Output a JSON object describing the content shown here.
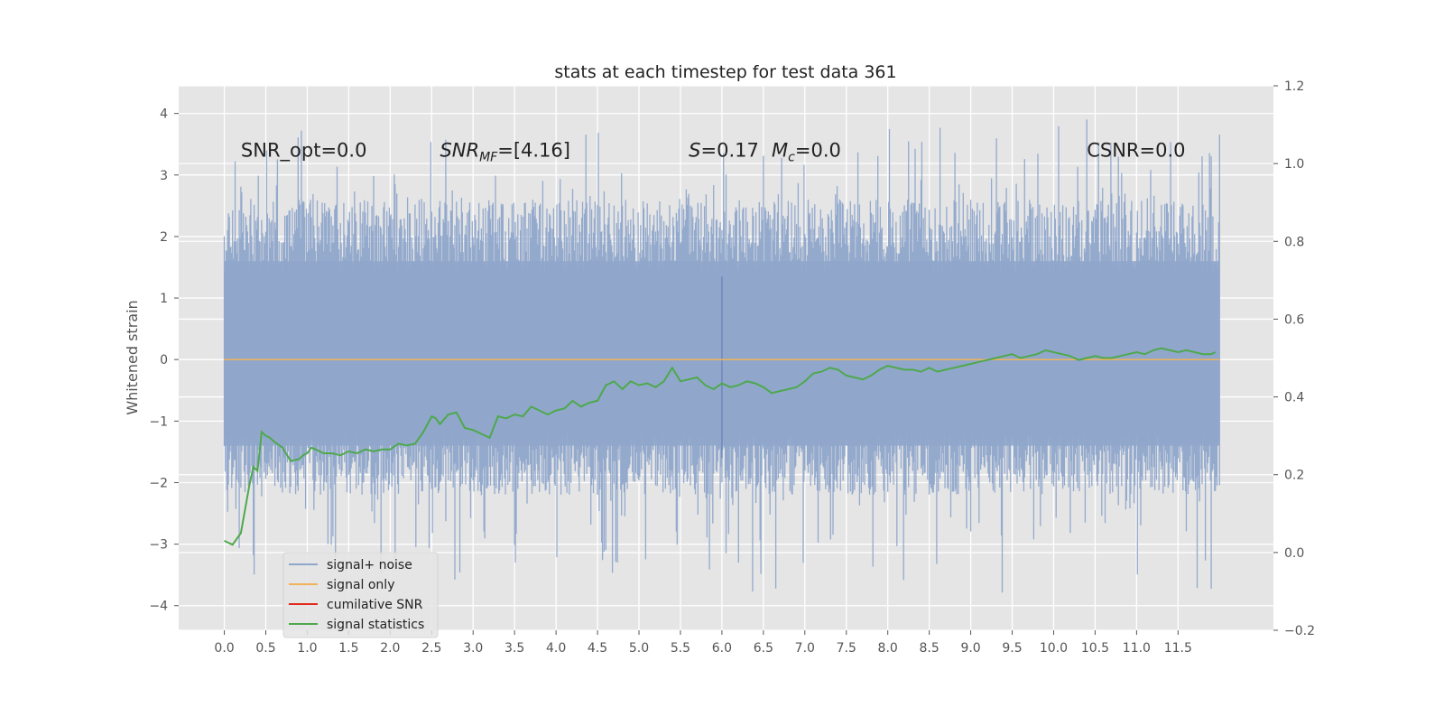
{
  "chart_data": {
    "type": "line",
    "title": "stats at each timestep for test data 361",
    "ylabel": "Whitened strain",
    "xlabel": "",
    "xlim": [
      -0.55,
      12.65
    ],
    "ylim": [
      -4.4,
      4.45
    ],
    "y2lim": [
      -0.2,
      1.2
    ],
    "x_ticks": [
      0.0,
      0.5,
      1.0,
      1.5,
      2.0,
      2.5,
      3.0,
      3.5,
      4.0,
      4.5,
      5.0,
      5.5,
      6.0,
      6.5,
      7.0,
      7.5,
      8.0,
      8.5,
      9.0,
      9.5,
      10.0,
      10.5,
      11.0,
      11.5
    ],
    "x_tick_labels": [
      "0.0",
      "0.5",
      "1.0",
      "1.5",
      "2.0",
      "2.5",
      "3.0",
      "3.5",
      "4.0",
      "4.5",
      "5.0",
      "5.5",
      "6.0",
      "6.5",
      "7.0",
      "7.5",
      "8.0",
      "8.5",
      "9.0",
      "9.5",
      "10.0",
      "10.5",
      "11.0",
      "11.5"
    ],
    "y_ticks": [
      -4,
      -3,
      -2,
      -1,
      0,
      1,
      2,
      3,
      4
    ],
    "y_tick_labels": [
      "−4",
      "−3",
      "−2",
      "−1",
      "0",
      "1",
      "2",
      "3",
      "4"
    ],
    "y2_ticks": [
      -0.2,
      0.0,
      0.2,
      0.4,
      0.6,
      0.8,
      1.0,
      1.2
    ],
    "y2_tick_labels": [
      "−0.2",
      "0.0",
      "0.2",
      "0.4",
      "0.6",
      "0.8",
      "1.0",
      "1.2"
    ],
    "grid": true,
    "legend_position": "lower-left",
    "noise_x_range": [
      0.0,
      12.0
    ],
    "series": [
      {
        "name": "signal+ noise",
        "color": "#8fa6cb",
        "axis": "left",
        "style": "noise band, approx. −1.8 to +2.2 with spikes to ±4"
      },
      {
        "name": "signal only",
        "color": "#f0b35a",
        "axis": "left",
        "x": [
          0.0,
          12.0
        ],
        "y": [
          0.0,
          0.0
        ]
      },
      {
        "name": "cumilative SNR",
        "color": "#e2261c",
        "axis": "right",
        "x": [],
        "y": []
      },
      {
        "name": "signal statistics",
        "color": "#4ea84d",
        "axis": "right",
        "x": [
          0.0,
          0.1,
          0.2,
          0.3,
          0.35,
          0.4,
          0.45,
          0.5,
          0.55,
          0.6,
          0.7,
          0.8,
          0.9,
          0.95,
          1.0,
          1.05,
          1.1,
          1.2,
          1.3,
          1.4,
          1.5,
          1.6,
          1.7,
          1.8,
          1.9,
          2.0,
          2.1,
          2.2,
          2.3,
          2.4,
          2.5,
          2.55,
          2.6,
          2.7,
          2.8,
          2.9,
          3.0,
          3.1,
          3.2,
          3.3,
          3.4,
          3.5,
          3.6,
          3.7,
          3.8,
          3.9,
          4.0,
          4.1,
          4.2,
          4.3,
          4.4,
          4.5,
          4.6,
          4.7,
          4.8,
          4.9,
          5.0,
          5.1,
          5.2,
          5.3,
          5.4,
          5.5,
          5.6,
          5.7,
          5.8,
          5.9,
          6.0,
          6.1,
          6.2,
          6.3,
          6.4,
          6.5,
          6.6,
          6.7,
          6.8,
          6.9,
          7.0,
          7.1,
          7.2,
          7.3,
          7.4,
          7.5,
          7.6,
          7.7,
          7.8,
          7.9,
          8.0,
          8.1,
          8.2,
          8.3,
          8.4,
          8.5,
          8.6,
          8.7,
          8.8,
          8.9,
          9.0,
          9.1,
          9.2,
          9.3,
          9.4,
          9.5,
          9.6,
          9.7,
          9.8,
          9.9,
          10.0,
          10.1,
          10.2,
          10.3,
          10.4,
          10.5,
          10.6,
          10.7,
          10.8,
          10.9,
          11.0,
          11.1,
          11.2,
          11.3,
          11.4,
          11.5,
          11.6,
          11.7,
          11.8,
          11.9,
          11.95
        ],
        "y": [
          0.03,
          0.02,
          0.05,
          0.17,
          0.22,
          0.21,
          0.31,
          0.3,
          0.295,
          0.285,
          0.27,
          0.235,
          0.24,
          0.25,
          0.255,
          0.27,
          0.265,
          0.255,
          0.255,
          0.25,
          0.26,
          0.255,
          0.265,
          0.26,
          0.265,
          0.265,
          0.28,
          0.275,
          0.28,
          0.31,
          0.35,
          0.345,
          0.33,
          0.355,
          0.36,
          0.32,
          0.315,
          0.305,
          0.295,
          0.35,
          0.345,
          0.355,
          0.35,
          0.375,
          0.365,
          0.355,
          0.365,
          0.37,
          0.39,
          0.375,
          0.385,
          0.39,
          0.43,
          0.44,
          0.42,
          0.44,
          0.43,
          0.435,
          0.425,
          0.44,
          0.475,
          0.44,
          0.445,
          0.45,
          0.43,
          0.42,
          0.435,
          0.425,
          0.43,
          0.44,
          0.435,
          0.425,
          0.41,
          0.415,
          0.42,
          0.425,
          0.44,
          0.46,
          0.465,
          0.475,
          0.47,
          0.455,
          0.45,
          0.445,
          0.455,
          0.47,
          0.48,
          0.475,
          0.47,
          0.47,
          0.465,
          0.475,
          0.465,
          0.47,
          0.475,
          0.48,
          0.485,
          0.49,
          0.495,
          0.5,
          0.505,
          0.51,
          0.5,
          0.505,
          0.51,
          0.52,
          0.515,
          0.51,
          0.505,
          0.495,
          0.5,
          0.505,
          0.5,
          0.5,
          0.505,
          0.51,
          0.515,
          0.51,
          0.52,
          0.525,
          0.52,
          0.515,
          0.52,
          0.515,
          0.51,
          0.51,
          0.515
        ]
      }
    ],
    "annotations": [
      {
        "text": "SNR_opt=0.0",
        "x": 0.2,
        "y": 3.3
      },
      {
        "text_prefix": "SNR",
        "text_sub": "MF",
        "text_rest": "=[4.16]",
        "italic_prefix": true,
        "x": 2.6,
        "y": 3.3
      },
      {
        "text_prefix": "S",
        "text_rest": "=0.17",
        "italic_prefix": true,
        "x": 5.6,
        "y": 3.3
      },
      {
        "text_prefix": "M",
        "text_sub": "c",
        "text_rest": "=0.0",
        "italic_prefix": true,
        "x": 6.6,
        "y": 3.3
      },
      {
        "text": "CSNR=0.0",
        "x": 10.4,
        "y": 3.3
      }
    ]
  }
}
